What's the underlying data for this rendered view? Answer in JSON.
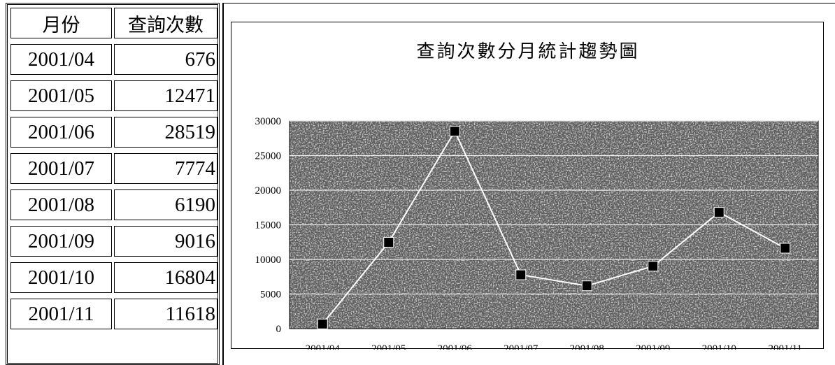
{
  "table": {
    "headers": [
      "月份",
      "查詢次數"
    ],
    "rows": [
      [
        "2001/04",
        "676"
      ],
      [
        "2001/05",
        "12471"
      ],
      [
        "2001/06",
        "28519"
      ],
      [
        "2001/07",
        "7774"
      ],
      [
        "2001/08",
        "6190"
      ],
      [
        "2001/09",
        "9016"
      ],
      [
        "2001/10",
        "16804"
      ],
      [
        "2001/11",
        "11618"
      ]
    ]
  },
  "chart_data": {
    "type": "line",
    "title": "查詢次數分月統計趨勢圖",
    "categories": [
      "2001/04",
      "2001/05",
      "2001/06",
      "2001/07",
      "2001/08",
      "2001/09",
      "2001/10",
      "2001/11"
    ],
    "series": [
      {
        "values": [
          676,
          12471,
          28519,
          7774,
          6190,
          9016,
          16804,
          11618
        ]
      }
    ],
    "ylim": [
      0,
      30000
    ],
    "yticks": [
      0,
      5000,
      10000,
      15000,
      20000,
      25000,
      30000
    ],
    "ytick_labels": [
      "0",
      "5000",
      "10000",
      "15000",
      "20000",
      "25000",
      "30000"
    ],
    "grid": true,
    "legend": "none",
    "colors": {
      "line": "#ffffff",
      "marker": "#000000",
      "plot_background": "#5a5a5a"
    }
  }
}
